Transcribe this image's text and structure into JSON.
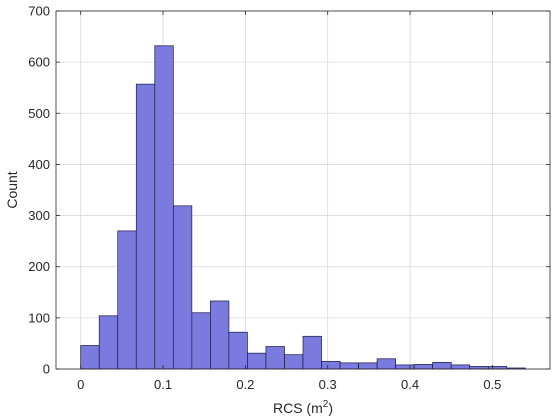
{
  "chart_data": {
    "type": "bar",
    "subtype": "histogram",
    "xlabel": "RCS (m",
    "xlabel_superscript": "2",
    "xlabel_suffix": ")",
    "ylabel": "Count",
    "xlim": [
      -0.03,
      0.57
    ],
    "ylim": [
      0,
      700
    ],
    "xticks": [
      0,
      0.1,
      0.2,
      0.3,
      0.4,
      0.5
    ],
    "xtick_labels": [
      "0",
      "0.1",
      "0.2",
      "0.3",
      "0.4",
      "0.5"
    ],
    "yticks": [
      0,
      100,
      200,
      300,
      400,
      500,
      600,
      700
    ],
    "ytick_labels": [
      "0",
      "100",
      "200",
      "300",
      "400",
      "500",
      "600",
      "700"
    ],
    "grid": true,
    "bar_color": "#7b7bdf",
    "edge_color": "#1a1a40",
    "bin_edges": [
      0,
      0.0225,
      0.045,
      0.0675,
      0.09,
      0.1125,
      0.135,
      0.1575,
      0.18,
      0.2025,
      0.225,
      0.2475,
      0.27,
      0.2925,
      0.315,
      0.3375,
      0.36,
      0.3825,
      0.405,
      0.4275,
      0.45,
      0.4725,
      0.495,
      0.5175,
      0.54
    ],
    "values": [
      46,
      104,
      270,
      557,
      632,
      319,
      110,
      133,
      72,
      31,
      44,
      28,
      64,
      15,
      12,
      12,
      20,
      8,
      9,
      13,
      8,
      5,
      5,
      2
    ]
  }
}
